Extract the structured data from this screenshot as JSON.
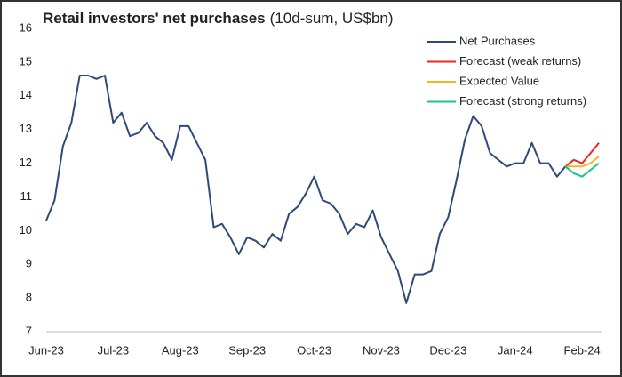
{
  "chart_data": {
    "type": "line",
    "title": "Retail investors' net purchases",
    "subtitle": "(10d-sum, US$bn)",
    "categories": [
      "Jun-23",
      null,
      null,
      null,
      null,
      null,
      null,
      null,
      "Jul-23",
      null,
      null,
      null,
      null,
      null,
      null,
      null,
      "Aug-23",
      null,
      null,
      null,
      null,
      null,
      null,
      null,
      "Sep-23",
      null,
      null,
      null,
      null,
      null,
      null,
      null,
      "Oct-23",
      null,
      null,
      null,
      null,
      null,
      null,
      null,
      "Nov-23",
      null,
      null,
      null,
      null,
      null,
      null,
      null,
      "Dec-23",
      null,
      null,
      null,
      null,
      null,
      null,
      null,
      "Jan-24",
      null,
      null,
      null,
      null,
      null,
      null,
      null,
      "Feb-24",
      null,
      null
    ],
    "series": [
      {
        "name": "Net Purchases",
        "color": "#2e4a7a",
        "values": [
          10.3,
          10.9,
          12.5,
          13.2,
          14.6,
          14.6,
          14.5,
          14.6,
          13.2,
          13.5,
          12.8,
          12.9,
          13.2,
          12.8,
          12.6,
          12.1,
          13.1,
          13.1,
          12.6,
          12.1,
          10.1,
          10.2,
          9.8,
          9.3,
          9.8,
          9.7,
          9.5,
          9.9,
          9.7,
          10.5,
          10.7,
          11.1,
          11.6,
          10.9,
          10.8,
          10.5,
          9.9,
          10.2,
          10.1,
          10.6,
          9.8,
          9.3,
          8.8,
          7.85,
          8.7,
          8.7,
          8.8,
          9.9,
          10.4,
          11.5,
          12.7,
          13.4,
          13.1,
          12.3,
          12.1,
          11.9,
          12.0,
          12.0,
          12.6,
          12.0,
          12.0,
          11.6,
          11.9,
          null,
          null,
          null,
          null
        ]
      },
      {
        "name": "Forecast (weak returns)",
        "color": "#e8281e",
        "values": [
          null,
          null,
          null,
          null,
          null,
          null,
          null,
          null,
          null,
          null,
          null,
          null,
          null,
          null,
          null,
          null,
          null,
          null,
          null,
          null,
          null,
          null,
          null,
          null,
          null,
          null,
          null,
          null,
          null,
          null,
          null,
          null,
          null,
          null,
          null,
          null,
          null,
          null,
          null,
          null,
          null,
          null,
          null,
          null,
          null,
          null,
          null,
          null,
          null,
          null,
          null,
          null,
          null,
          null,
          null,
          null,
          null,
          null,
          null,
          null,
          null,
          null,
          11.9,
          12.1,
          12.0,
          12.3,
          12.6
        ]
      },
      {
        "name": "Expected Value",
        "color": "#f2b71a",
        "values": [
          null,
          null,
          null,
          null,
          null,
          null,
          null,
          null,
          null,
          null,
          null,
          null,
          null,
          null,
          null,
          null,
          null,
          null,
          null,
          null,
          null,
          null,
          null,
          null,
          null,
          null,
          null,
          null,
          null,
          null,
          null,
          null,
          null,
          null,
          null,
          null,
          null,
          null,
          null,
          null,
          null,
          null,
          null,
          null,
          null,
          null,
          null,
          null,
          null,
          null,
          null,
          null,
          null,
          null,
          null,
          null,
          null,
          null,
          null,
          null,
          null,
          null,
          11.9,
          11.9,
          11.9,
          12.0,
          12.2
        ]
      },
      {
        "name": "Forecast (strong returns)",
        "color": "#1fbf8a",
        "values": [
          null,
          null,
          null,
          null,
          null,
          null,
          null,
          null,
          null,
          null,
          null,
          null,
          null,
          null,
          null,
          null,
          null,
          null,
          null,
          null,
          null,
          null,
          null,
          null,
          null,
          null,
          null,
          null,
          null,
          null,
          null,
          null,
          null,
          null,
          null,
          null,
          null,
          null,
          null,
          null,
          null,
          null,
          null,
          null,
          null,
          null,
          null,
          null,
          null,
          null,
          null,
          null,
          null,
          null,
          null,
          null,
          null,
          null,
          null,
          null,
          null,
          null,
          11.9,
          11.7,
          11.6,
          11.8,
          12.0
        ]
      }
    ],
    "ylim": [
      7,
      16
    ],
    "yticks": [
      7,
      8,
      9,
      10,
      11,
      12,
      13,
      14,
      15,
      16
    ],
    "grid": false,
    "legend": "top-right"
  }
}
